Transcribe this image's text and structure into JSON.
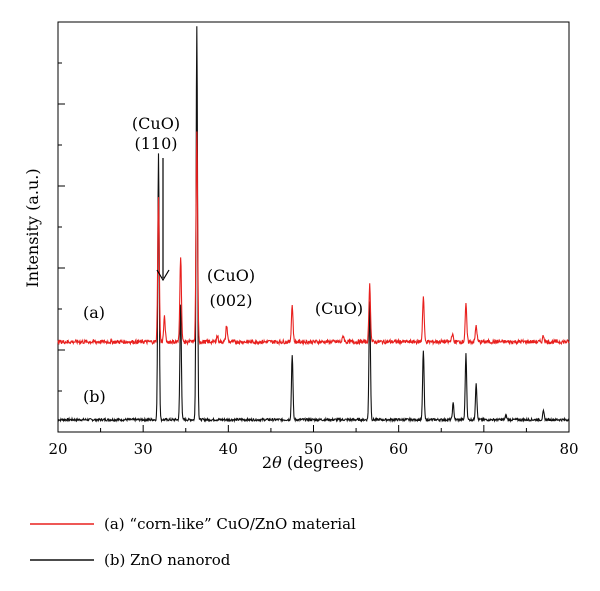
{
  "chart_data": {
    "type": "line",
    "xlabel": "2θ (degrees)",
    "ylabel": "Intensity (a.u.)",
    "xlim": [
      20,
      80
    ],
    "xticks": [
      20,
      30,
      40,
      50,
      60,
      70,
      80
    ],
    "yticks_labeled": false,
    "grid": false,
    "legend": {
      "placement": "bottom-left, below plot"
    },
    "series": [
      {
        "name": "(a) “corn-like” CuO/ZnO material",
        "trace_label": "(a)",
        "color": "#e8201e",
        "baseline": 0.22,
        "peaks": [
          {
            "x": 31.8,
            "h": 0.35
          },
          {
            "x": 32.5,
            "h": 0.06
          },
          {
            "x": 34.4,
            "h": 0.21
          },
          {
            "x": 36.3,
            "h": 0.51
          },
          {
            "x": 38.7,
            "h": 0.015
          },
          {
            "x": 39.8,
            "h": 0.04
          },
          {
            "x": 47.5,
            "h": 0.09
          },
          {
            "x": 53.5,
            "h": 0.015
          },
          {
            "x": 56.6,
            "h": 0.14
          },
          {
            "x": 62.9,
            "h": 0.11
          },
          {
            "x": 66.3,
            "h": 0.02
          },
          {
            "x": 67.9,
            "h": 0.09
          },
          {
            "x": 69.1,
            "h": 0.04
          },
          {
            "x": 77.0,
            "h": 0.015
          }
        ]
      },
      {
        "name": "(b) ZnO nanorod",
        "trace_label": "(b)",
        "color": "#111111",
        "baseline": 0.03,
        "peaks": [
          {
            "x": 31.8,
            "h": 0.65
          },
          {
            "x": 34.4,
            "h": 0.28
          },
          {
            "x": 36.3,
            "h": 0.96
          },
          {
            "x": 47.5,
            "h": 0.16
          },
          {
            "x": 56.6,
            "h": 0.29
          },
          {
            "x": 62.9,
            "h": 0.17
          },
          {
            "x": 66.4,
            "h": 0.04
          },
          {
            "x": 67.9,
            "h": 0.16
          },
          {
            "x": 69.1,
            "h": 0.09
          },
          {
            "x": 72.6,
            "h": 0.01
          },
          {
            "x": 77.0,
            "h": 0.02
          }
        ]
      }
    ],
    "annotations": [
      {
        "line1": "(CuO)",
        "line2": "(110)"
      },
      {
        "line1": "(CuO)",
        "line2": "(002)"
      },
      {
        "line1": "(CuO)",
        "line2": ""
      }
    ]
  }
}
